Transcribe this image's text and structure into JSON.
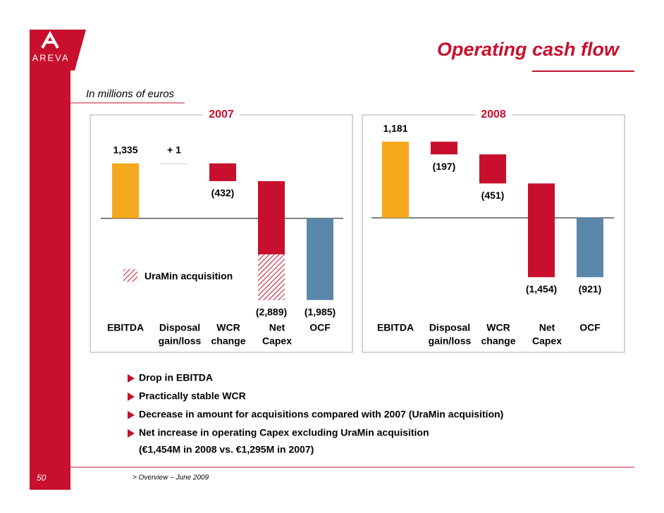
{
  "slide": {
    "logo": "AREVA",
    "title": "Operating cash flow",
    "subtitle": "In millions of euros",
    "legend": "UraMin acquisition",
    "bullets": [
      [
        "Drop in EBITDA"
      ],
      [
        "Practically stable WCR"
      ],
      [
        "Decrease in amount for acquisitions compared with 2007 (UraMin acquisition)"
      ],
      [
        "Net increase in operating Capex excluding UraMin acquisition",
        "(€1,454M in 2008 vs. €1,295M in 2007)"
      ]
    ],
    "page": "50",
    "footer": "> Overview – June 2009"
  },
  "chart_data": [
    {
      "type": "waterfall",
      "title": "2007",
      "categories": [
        [
          "EBITDA"
        ],
        [
          "Disposal",
          "gain/loss"
        ],
        [
          "WCR",
          "change"
        ],
        [
          "Net",
          "Capex"
        ],
        [
          "OCF"
        ]
      ],
      "values": [
        1335,
        1,
        -432,
        -2889,
        -1985
      ],
      "value_labels": [
        "1,335",
        "+ 1",
        "(432)",
        "(2,889)",
        "(1,985)"
      ],
      "colors": [
        "#f5a81c",
        "#cccccc",
        "#c8102e",
        "#c8102e",
        "#5b87ab"
      ],
      "uramin": {
        "name": "UraMin acquisition",
        "values": [
          null,
          null,
          null,
          -1110,
          null
        ]
      },
      "ylim": [
        -2400,
        2480
      ]
    },
    {
      "type": "waterfall",
      "title": "2008",
      "categories": [
        [
          "EBITDA"
        ],
        [
          "Disposal",
          "gain/loss"
        ],
        [
          "WCR",
          "change"
        ],
        [
          "Net",
          "Capex"
        ],
        [
          "OCF"
        ]
      ],
      "values": [
        1181,
        -197,
        -451,
        -1454,
        -921
      ],
      "value_labels": [
        "1,181",
        "(197)",
        "(451)",
        "(1,454)",
        "(921)"
      ],
      "colors": [
        "#f5a81c",
        "#c8102e",
        "#c8102e",
        "#c8102e",
        "#5b87ab"
      ],
      "ylim": [
        -1540,
        1575
      ]
    }
  ]
}
